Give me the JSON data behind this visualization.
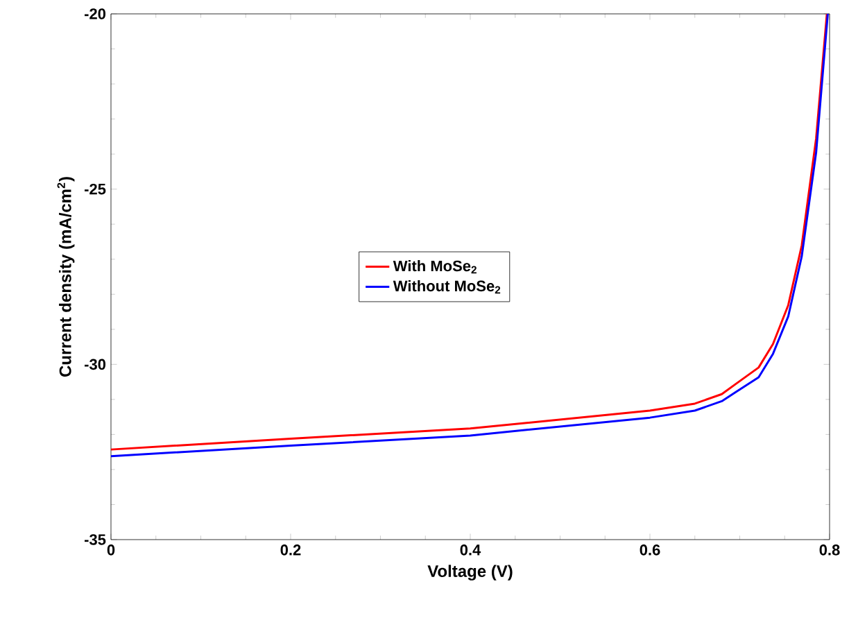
{
  "chart_data": {
    "type": "line",
    "xlabel": "Voltage (V)",
    "ylabel": "Current density (mA/cm$^{2}$)",
    "xlim": [
      0,
      0.8
    ],
    "ylim": [
      -35,
      -20
    ],
    "xticks": [
      0,
      0.2,
      0.4,
      0.6,
      0.8
    ],
    "yticks": [
      -35,
      -30,
      -25,
      -20
    ],
    "legend": "center",
    "grid": false,
    "series": [
      {
        "name": "With MoSe$_{2}$",
        "color": "#ff0000",
        "x": [
          0,
          0.2,
          0.4,
          0.6,
          0.65,
          0.68,
          0.695,
          0.721,
          0.737,
          0.754,
          0.769,
          0.785,
          0.797
        ],
        "values": [
          -32.43,
          -32.12,
          -31.83,
          -31.32,
          -31.12,
          -30.85,
          -30.57,
          -30.09,
          -29.42,
          -28.31,
          -26.61,
          -23.56,
          -20
        ]
      },
      {
        "name": "Without MoSe$_{2}$",
        "color": "#0000ff",
        "x": [
          0,
          0.2,
          0.4,
          0.6,
          0.65,
          0.68,
          0.695,
          0.721,
          0.737,
          0.754,
          0.769,
          0.785,
          0.798
        ],
        "values": [
          -32.62,
          -32.32,
          -32.03,
          -31.52,
          -31.32,
          -31.05,
          -30.8,
          -30.37,
          -29.7,
          -28.63,
          -26.92,
          -23.96,
          -20
        ]
      }
    ]
  }
}
